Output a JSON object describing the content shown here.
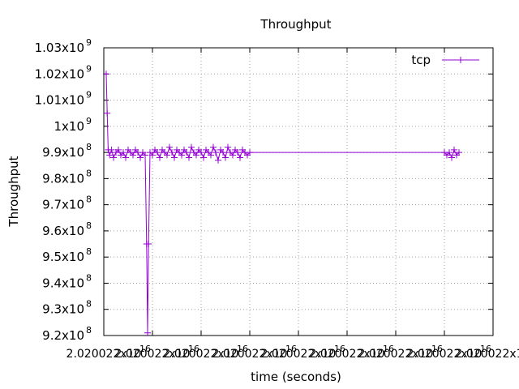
{
  "chart_data": {
    "type": "line",
    "title": "Throughput",
    "xlabel": "time (seconds)",
    "ylabel": "Throughput",
    "ylim": [
      920000000,
      1030000000
    ],
    "xlim_relative_seconds": [
      0,
      8
    ],
    "grid": true,
    "legend_position": "top-right",
    "y_ticks": [
      {
        "mantissa": "9.2x10",
        "exp": "8"
      },
      {
        "mantissa": "9.3x10",
        "exp": "8"
      },
      {
        "mantissa": "9.4x10",
        "exp": "8"
      },
      {
        "mantissa": "9.5x10",
        "exp": "8"
      },
      {
        "mantissa": "9.6x10",
        "exp": "8"
      },
      {
        "mantissa": "9.7x10",
        "exp": "8"
      },
      {
        "mantissa": "9.8x10",
        "exp": "8"
      },
      {
        "mantissa": "9.9x10",
        "exp": "8"
      },
      {
        "mantissa": "1x10",
        "exp": "9"
      },
      {
        "mantissa": "1.01x10",
        "exp": "9"
      },
      {
        "mantissa": "1.02x10",
        "exp": "9"
      },
      {
        "mantissa": "1.03x10",
        "exp": "9"
      }
    ],
    "x_ticks": [
      {
        "mantissa": "2.020022x10",
        "exp": "16"
      },
      {
        "mantissa": "2.020022x10",
        "exp": "16"
      },
      {
        "mantissa": "2.020022x10",
        "exp": "16"
      },
      {
        "mantissa": "2.020022x10",
        "exp": "16"
      },
      {
        "mantissa": "2.020022x10",
        "exp": "16"
      },
      {
        "mantissa": "2.020022x10",
        "exp": "16"
      },
      {
        "mantissa": "2.020022x10",
        "exp": "16"
      },
      {
        "mantissa": "2.020022x10",
        "exp": "16"
      },
      {
        "mantissa": "2.020022x10",
        "exp": "16"
      }
    ],
    "series": [
      {
        "name": "tcp",
        "color": "#9400d3",
        "x": [
          0.05,
          0.07,
          0.09,
          0.12,
          0.16,
          0.2,
          0.25,
          0.3,
          0.35,
          0.4,
          0.45,
          0.5,
          0.55,
          0.6,
          0.65,
          0.7,
          0.75,
          0.8,
          0.85,
          0.88,
          0.9,
          0.92,
          0.95,
          1.0,
          1.05,
          1.1,
          1.15,
          1.2,
          1.25,
          1.3,
          1.35,
          1.4,
          1.45,
          1.5,
          1.55,
          1.6,
          1.65,
          1.7,
          1.75,
          1.8,
          1.85,
          1.9,
          1.95,
          2.0,
          2.05,
          2.1,
          2.15,
          2.2,
          2.25,
          2.3,
          2.35,
          2.4,
          2.45,
          2.5,
          2.55,
          2.6,
          2.65,
          2.7,
          2.75,
          2.8,
          2.85,
          2.9,
          2.95,
          3.0,
          7.0,
          7.05,
          7.1,
          7.15,
          7.2,
          7.25,
          7.3
        ],
        "y": [
          1020000000,
          1005000000,
          991000000,
          989000000,
          991000000,
          988000000,
          990000000,
          991000000,
          989000000,
          990000000,
          988000000,
          991000000,
          990000000,
          989000000,
          991000000,
          990000000,
          988000000,
          990000000,
          989000000,
          955000000,
          921000000,
          955000000,
          990000000,
          989000000,
          991000000,
          990000000,
          988000000,
          991000000,
          990000000,
          989000000,
          992000000,
          990000000,
          988000000,
          991000000,
          990000000,
          989000000,
          991000000,
          990000000,
          988000000,
          992000000,
          990000000,
          989000000,
          991000000,
          990000000,
          988000000,
          991000000,
          990000000,
          989000000,
          992000000,
          990000000,
          987000000,
          991000000,
          990000000,
          988000000,
          992000000,
          990000000,
          989000000,
          991000000,
          990000000,
          988000000,
          991000000,
          990000000,
          989000000,
          990000000,
          990000000,
          989000000,
          990000000,
          988000000,
          991000000,
          989000000,
          990000000
        ]
      }
    ]
  }
}
